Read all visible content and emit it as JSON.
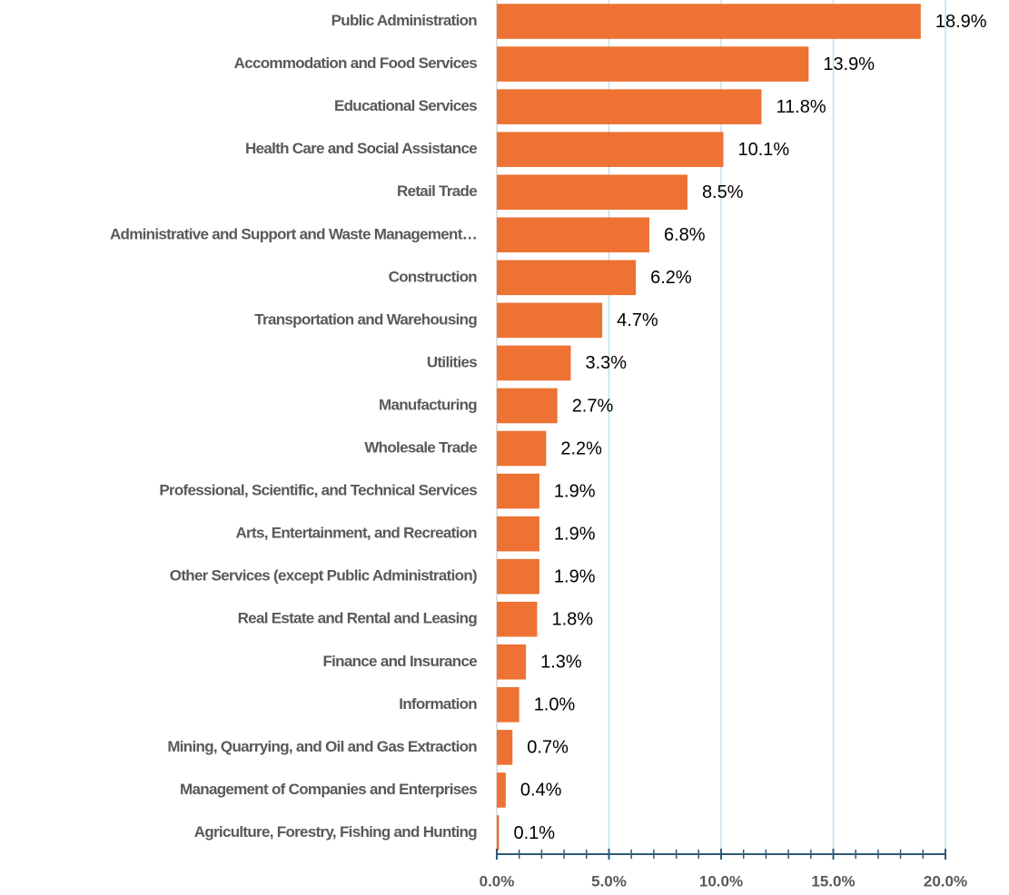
{
  "chart_data": {
    "type": "barh",
    "categories": [
      "Public Administration",
      "Accommodation and Food Services",
      "Educational Services",
      "Health Care and Social Assistance",
      "Retail Trade",
      "Administrative and Support and Waste Management…",
      "Construction",
      "Transportation and Warehousing",
      "Utilities",
      "Manufacturing",
      "Wholesale Trade",
      "Professional, Scientific, and Technical Services",
      "Arts, Entertainment, and Recreation",
      "Other Services (except Public Administration)",
      "Real Estate and Rental and Leasing",
      "Finance and Insurance",
      "Information",
      "Mining, Quarrying, and Oil and Gas Extraction",
      "Management of Companies and Enterprises",
      "Agriculture, Forestry, Fishing and Hunting"
    ],
    "values": [
      18.9,
      13.9,
      11.8,
      10.1,
      8.5,
      6.8,
      6.2,
      4.7,
      3.3,
      2.7,
      2.2,
      1.9,
      1.9,
      1.9,
      1.8,
      1.3,
      1.0,
      0.7,
      0.4,
      0.1
    ],
    "value_labels": [
      "18.9%",
      "13.9%",
      "11.8%",
      "10.1%",
      "8.5%",
      "6.8%",
      "6.2%",
      "4.7%",
      "3.3%",
      "2.7%",
      "2.2%",
      "1.9%",
      "1.9%",
      "1.9%",
      "1.8%",
      "1.3%",
      "1.0%",
      "0.7%",
      "0.4%",
      "0.1%"
    ],
    "color": "#ed7233",
    "xlim": [
      0,
      20
    ],
    "xticks": [
      {
        "value": 0,
        "label": "0.0%"
      },
      {
        "value": 5,
        "label": "5.0%"
      },
      {
        "value": 10,
        "label": "10.0%"
      },
      {
        "value": 15,
        "label": "15.0%"
      },
      {
        "value": 20,
        "label": "20.0%"
      }
    ],
    "grid": true
  }
}
